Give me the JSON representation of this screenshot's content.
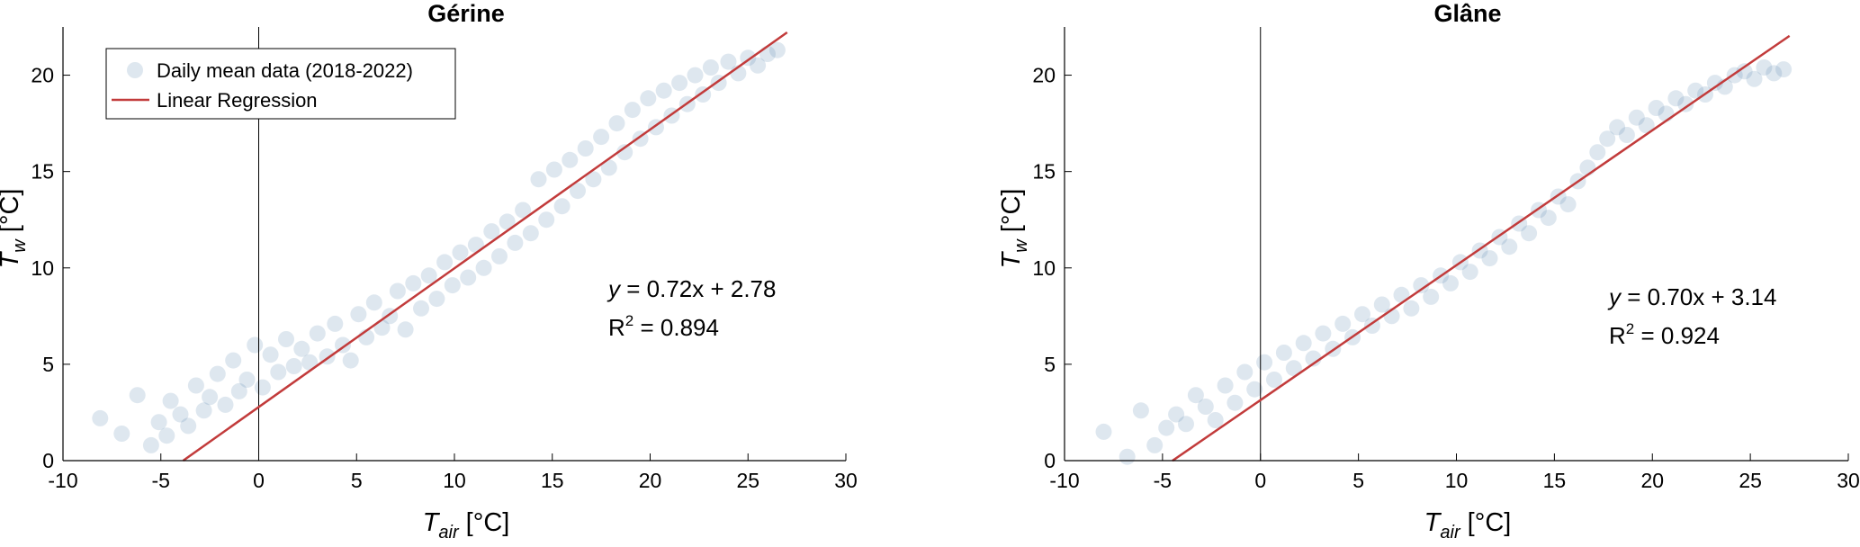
{
  "chart_data": [
    {
      "type": "scatter",
      "title": "Gérine",
      "xlabel": {
        "symbol": "T",
        "subscript": "air",
        "unit": " [°C]"
      },
      "ylabel": {
        "symbol": "T",
        "subscript": "w",
        "unit": " [°C]"
      },
      "xlim": [
        -10,
        30
      ],
      "ylim": [
        0,
        22.5
      ],
      "xticks": [
        "-10",
        "-5",
        "0",
        "5",
        "10",
        "15",
        "20",
        "25",
        "30"
      ],
      "yticks": [
        "0",
        "5",
        "10",
        "15",
        "20"
      ],
      "series": [
        {
          "name": "Daily mean data (2018-2022)",
          "kind": "points",
          "color": "#4a7aa8",
          "x": [
            -8.1,
            -7.0,
            -6.2,
            -5.5,
            -5.1,
            -4.7,
            -4.5,
            -4.0,
            -3.6,
            -3.2,
            -2.8,
            -2.5,
            -2.1,
            -1.7,
            -1.3,
            -1.0,
            -0.6,
            -0.2,
            0.2,
            0.6,
            1.0,
            1.4,
            1.8,
            2.2,
            2.6,
            3.0,
            3.5,
            3.9,
            4.3,
            4.7,
            5.1,
            5.5,
            5.9,
            6.3,
            6.7,
            7.1,
            7.5,
            7.9,
            8.3,
            8.7,
            9.1,
            9.5,
            9.9,
            10.3,
            10.7,
            11.1,
            11.5,
            11.9,
            12.3,
            12.7,
            13.1,
            13.5,
            13.9,
            14.3,
            14.7,
            15.1,
            15.5,
            15.9,
            16.3,
            16.7,
            17.1,
            17.5,
            17.9,
            18.3,
            18.7,
            19.1,
            19.5,
            19.9,
            20.3,
            20.7,
            21.1,
            21.5,
            21.9,
            22.3,
            22.7,
            23.1,
            23.5,
            24.0,
            24.5,
            25.0,
            25.5,
            26.0,
            26.5
          ],
          "y": [
            2.2,
            1.4,
            3.4,
            0.8,
            2.0,
            1.3,
            3.1,
            2.4,
            1.8,
            3.9,
            2.6,
            3.3,
            4.5,
            2.9,
            5.2,
            3.6,
            4.2,
            6.0,
            3.8,
            5.5,
            4.6,
            6.3,
            4.9,
            5.8,
            5.1,
            6.6,
            5.4,
            7.1,
            6.0,
            5.2,
            7.6,
            6.4,
            8.2,
            6.9,
            7.5,
            8.8,
            6.8,
            9.2,
            7.9,
            9.6,
            8.4,
            10.3,
            9.1,
            10.8,
            9.5,
            11.2,
            10.0,
            11.9,
            10.6,
            12.4,
            11.3,
            13.0,
            11.8,
            14.6,
            12.5,
            15.1,
            13.2,
            15.6,
            14.0,
            16.2,
            14.6,
            16.8,
            15.2,
            17.5,
            16.0,
            18.2,
            16.7,
            18.8,
            17.3,
            19.2,
            17.9,
            19.6,
            18.5,
            20.0,
            19.0,
            20.4,
            19.6,
            20.7,
            20.1,
            20.9,
            20.5,
            21.1,
            21.3
          ]
        },
        {
          "name": "Linear Regression",
          "kind": "line",
          "color": "#c23b3b",
          "slope": 0.72,
          "intercept": 2.78,
          "x_range": [
            -3.86,
            27
          ]
        }
      ],
      "annotation": {
        "equation_prefix": "y",
        "equation_rest": " = 0.72x + 2.78",
        "r2_label": "R",
        "r2_exp": "2",
        "r2_value": " = 0.894"
      },
      "legend": "top-left",
      "grid": false
    },
    {
      "type": "scatter",
      "title": "Glâne",
      "xlabel": {
        "symbol": "T",
        "subscript": "air",
        "unit": " [°C]"
      },
      "ylabel": {
        "symbol": "T",
        "subscript": "w",
        "unit": " [°C]"
      },
      "xlim": [
        -10,
        30
      ],
      "ylim": [
        0,
        22.5
      ],
      "xticks": [
        "-10",
        "-5",
        "0",
        "5",
        "10",
        "15",
        "20",
        "25",
        "30"
      ],
      "yticks": [
        "0",
        "5",
        "10",
        "15",
        "20"
      ],
      "series": [
        {
          "name": "Daily mean data",
          "kind": "points",
          "color": "#4a7aa8",
          "x": [
            -8.0,
            -6.8,
            -6.1,
            -5.4,
            -4.8,
            -4.3,
            -3.8,
            -3.3,
            -2.8,
            -2.3,
            -1.8,
            -1.3,
            -0.8,
            -0.3,
            0.2,
            0.7,
            1.2,
            1.7,
            2.2,
            2.7,
            3.2,
            3.7,
            4.2,
            4.7,
            5.2,
            5.7,
            6.2,
            6.7,
            7.2,
            7.7,
            8.2,
            8.7,
            9.2,
            9.7,
            10.2,
            10.7,
            11.2,
            11.7,
            12.2,
            12.7,
            13.2,
            13.7,
            14.2,
            14.7,
            15.2,
            15.7,
            16.2,
            16.7,
            17.2,
            17.7,
            18.2,
            18.7,
            19.2,
            19.7,
            20.2,
            20.7,
            21.2,
            21.7,
            22.2,
            22.7,
            23.2,
            23.7,
            24.2,
            24.7,
            25.2,
            25.7,
            26.2,
            26.7
          ],
          "y": [
            1.5,
            0.2,
            2.6,
            0.8,
            1.7,
            2.4,
            1.9,
            3.4,
            2.8,
            2.1,
            3.9,
            3.0,
            4.6,
            3.7,
            5.1,
            4.2,
            5.6,
            4.8,
            6.1,
            5.3,
            6.6,
            5.8,
            7.1,
            6.4,
            7.6,
            7.0,
            8.1,
            7.5,
            8.6,
            7.9,
            9.1,
            8.5,
            9.6,
            9.2,
            10.3,
            9.8,
            10.9,
            10.5,
            11.6,
            11.1,
            12.3,
            11.8,
            13.0,
            12.6,
            13.7,
            13.3,
            14.5,
            15.2,
            16.0,
            16.7,
            17.3,
            16.9,
            17.8,
            17.4,
            18.3,
            18.0,
            18.8,
            18.5,
            19.2,
            19.0,
            19.6,
            19.4,
            20.0,
            20.2,
            19.8,
            20.4,
            20.1,
            20.3
          ]
        },
        {
          "name": "Linear Regression",
          "kind": "line",
          "color": "#c23b3b",
          "slope": 0.7,
          "intercept": 3.14,
          "x_range": [
            -4.49,
            27
          ]
        }
      ],
      "annotation": {
        "equation_prefix": "y",
        "equation_rest": " = 0.70x + 3.14",
        "r2_label": "R",
        "r2_exp": "2",
        "r2_value": " = 0.924"
      },
      "grid": false
    }
  ]
}
